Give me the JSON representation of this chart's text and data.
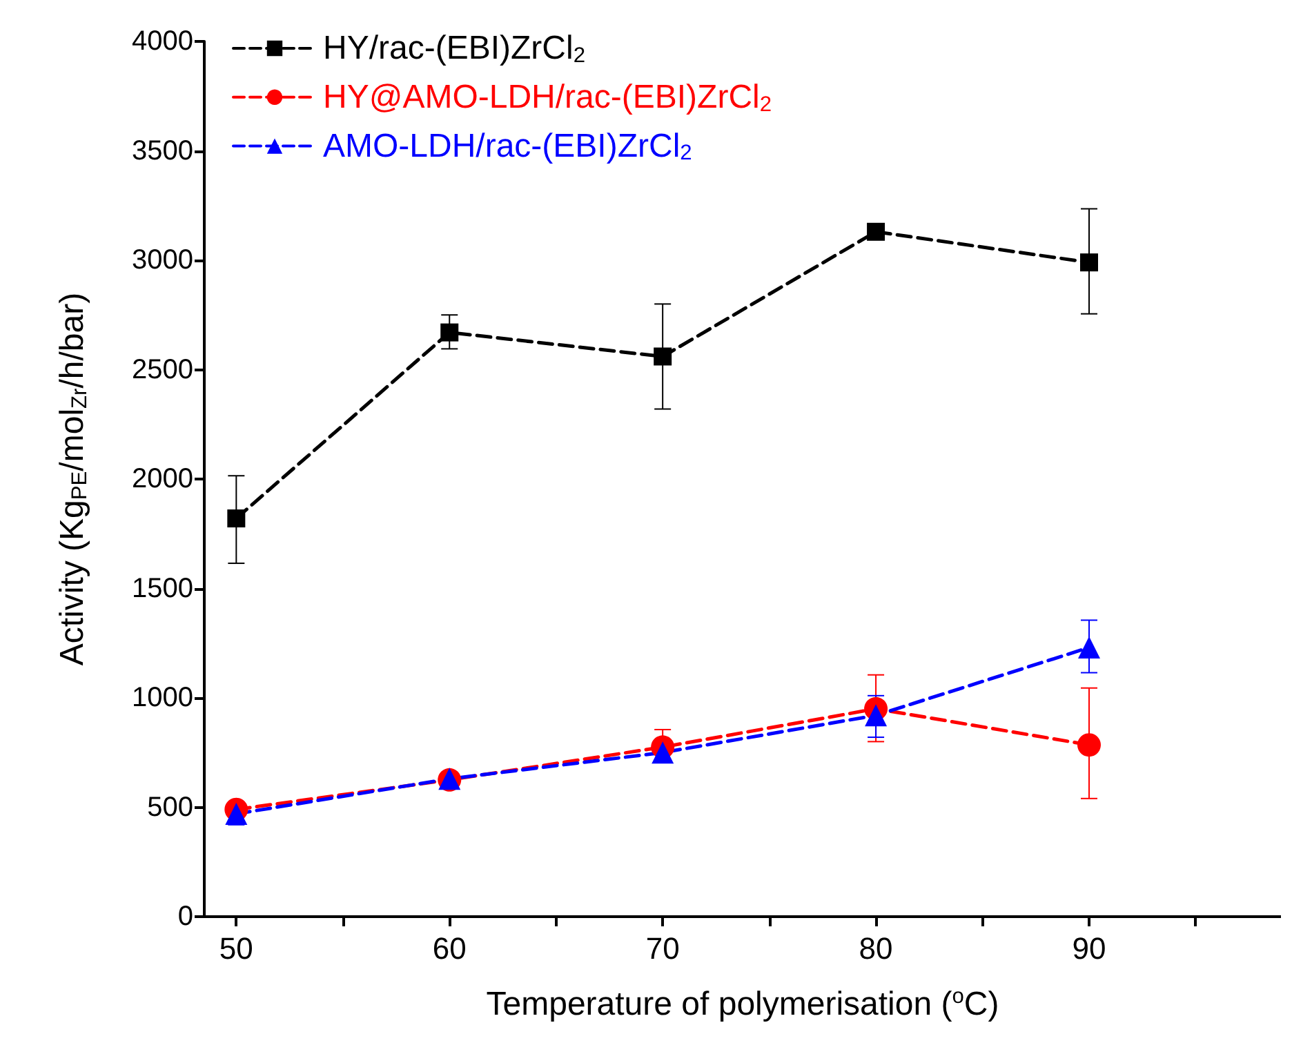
{
  "chart_data": {
    "type": "line",
    "xlabel": "Temperature of polymerisation ($^{o}$C)",
    "ylabel": "Activity (Kg$_{PE}$/mol$_{Zr}$/h/bar)",
    "x": [
      50,
      60,
      70,
      80,
      90
    ],
    "series": [
      {
        "name": "HY/rac-(EBI)ZrCl$_{2}$",
        "color": "#000000",
        "marker": "square",
        "values": [
          1820,
          2670,
          2560,
          3130,
          2990
        ],
        "errors": [
          [
            1615,
            2015
          ],
          [
            2595,
            2750
          ],
          [
            2320,
            2800
          ],
          [
            3100,
            3160
          ],
          [
            2755,
            3235
          ]
        ]
      },
      {
        "name": "HY@AMO-LDH/rac-(EBI)ZrCl$_{2}$",
        "color": "#ff0000",
        "marker": "circle",
        "values": [
          490,
          625,
          775,
          950,
          785
        ],
        "errors": [
          [
            465,
            515
          ],
          null,
          [
            715,
            855
          ],
          [
            800,
            1105
          ],
          [
            540,
            1045
          ]
        ]
      },
      {
        "name": "AMO-LDH/rac-(EBI)ZrCl$_{2}$",
        "color": "#0000ff",
        "marker": "triangle",
        "values": [
          470,
          630,
          750,
          920,
          1230
        ],
        "errors": [
          [
            420,
            520
          ],
          [
            585,
            630
          ],
          [
            710,
            750
          ],
          [
            820,
            1010
          ],
          [
            1115,
            1355
          ]
        ]
      }
    ],
    "xlim": [
      48.5,
      99
    ],
    "xticks": [
      50,
      {
        "value": 55,
        "label": null
      },
      60,
      {
        "value": 65,
        "label": null
      },
      70,
      {
        "value": 75,
        "label": null
      },
      80,
      {
        "value": 85,
        "label": null
      },
      90,
      {
        "value": 95,
        "label": null
      }
    ],
    "ylim": [
      0,
      4000
    ],
    "yticks": [
      0,
      500,
      1000,
      1500,
      2000,
      2500,
      3000,
      3500,
      4000
    ],
    "grid": false,
    "legend": "top left",
    "line_style": "dashed"
  }
}
